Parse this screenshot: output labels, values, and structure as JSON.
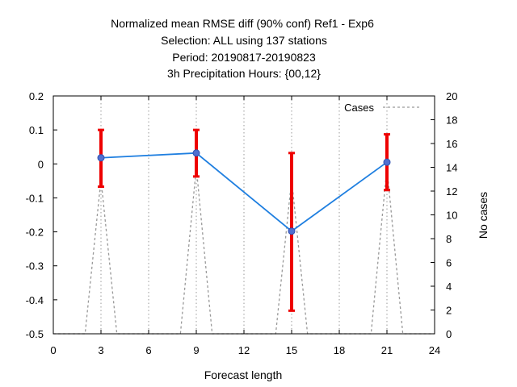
{
  "chart_data": {
    "type": "line",
    "title_lines": [
      "Normalized mean RMSE diff (90% conf) Ref1 - Exp6",
      "Selection: ALL using   137 stations",
      "Period: 20190817-20190823",
      "3h Precipitation   Hours: {00,12}"
    ],
    "xlabel": "Forecast length",
    "ylabel": "",
    "y2label": "No cases",
    "xlim": [
      0,
      24
    ],
    "ylim": [
      -0.5,
      0.2
    ],
    "y2lim": [
      0,
      20
    ],
    "xticks": [
      "0",
      "3",
      "6",
      "9",
      "12",
      "15",
      "18",
      "21",
      "24"
    ],
    "yticks": [
      "-0.5",
      "-0.4",
      "-0.3",
      "-0.2",
      "-0.1",
      "0",
      "0.1",
      "0.2"
    ],
    "y2ticks": [
      "0",
      "2",
      "4",
      "6",
      "8",
      "10",
      "12",
      "14",
      "16",
      "18",
      "20"
    ],
    "grid": true,
    "legend": {
      "position": "top-right",
      "entries": [
        "Cases"
      ]
    },
    "colors": {
      "line": "#1f7fe0",
      "marker": "#5070d0",
      "errorbar": "#ee0000",
      "cases": "#999999"
    },
    "series": [
      {
        "name": "",
        "x": [
          3,
          9,
          15,
          21
        ],
        "y": [
          0.018,
          0.032,
          -0.198,
          0.005
        ],
        "err_low": [
          -0.067,
          -0.037,
          -0.432,
          -0.077
        ],
        "err_high": [
          0.1,
          0.1,
          0.032,
          0.087
        ]
      }
    ],
    "cases": {
      "name": "Cases",
      "x": [
        0,
        2,
        3,
        4,
        8,
        9,
        10,
        14,
        15,
        16,
        20,
        21,
        22,
        24
      ],
      "y": [
        0,
        0,
        13,
        0,
        0,
        14,
        0,
        0,
        13,
        0,
        0,
        14,
        0,
        0
      ]
    }
  }
}
